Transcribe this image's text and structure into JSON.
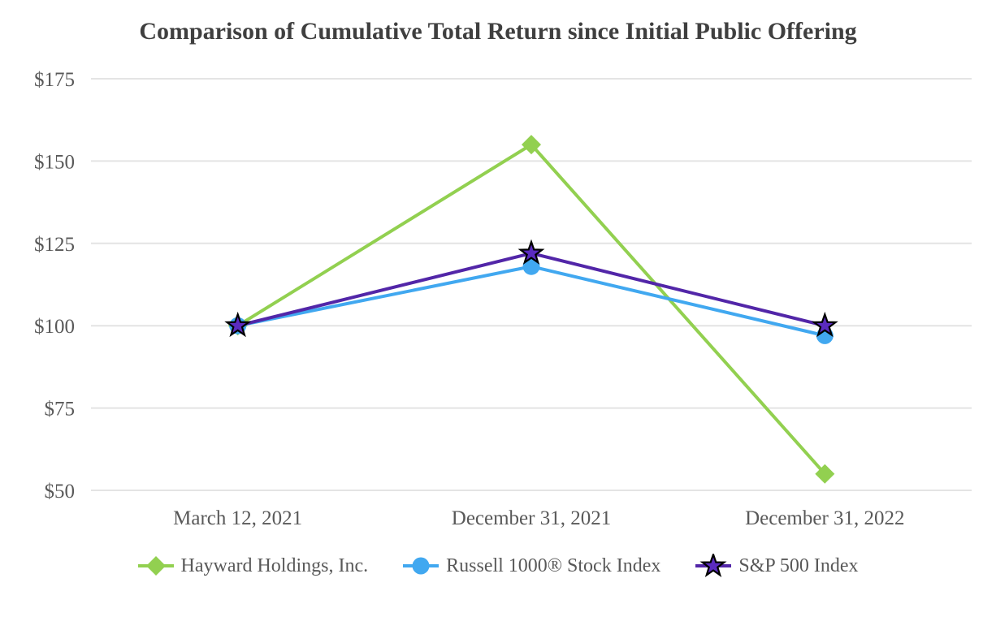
{
  "chart_data": {
    "type": "line",
    "title": "Comparison of Cumulative Total Return since Initial Public Offering",
    "categories": [
      "March 12, 2021",
      "December 31, 2021",
      "December 31, 2022"
    ],
    "series": [
      {
        "name": "Hayward Holdings, Inc.",
        "values": [
          100,
          155,
          55
        ],
        "color": "#92D050",
        "marker": "diamond"
      },
      {
        "name": "Russell 1000® Stock Index",
        "values": [
          100,
          118,
          97
        ],
        "color": "#41A8F0",
        "marker": "circle"
      },
      {
        "name": "S&P 500 Index",
        "values": [
          100,
          122,
          100
        ],
        "color": "#5226A8",
        "marker": "star",
        "marker_fill": "#5B2BC0",
        "marker_stroke": "#000000"
      }
    ],
    "ylim": [
      50,
      175
    ],
    "yticks": [
      175,
      150,
      125,
      100,
      75,
      50
    ],
    "ytick_prefix": "$",
    "grid": true,
    "gridline_color": "#E4E4E4",
    "legend_position": "bottom",
    "title_color": "#3F3F3F",
    "text_color": "#595959",
    "background_color": "#FFFFFF"
  }
}
